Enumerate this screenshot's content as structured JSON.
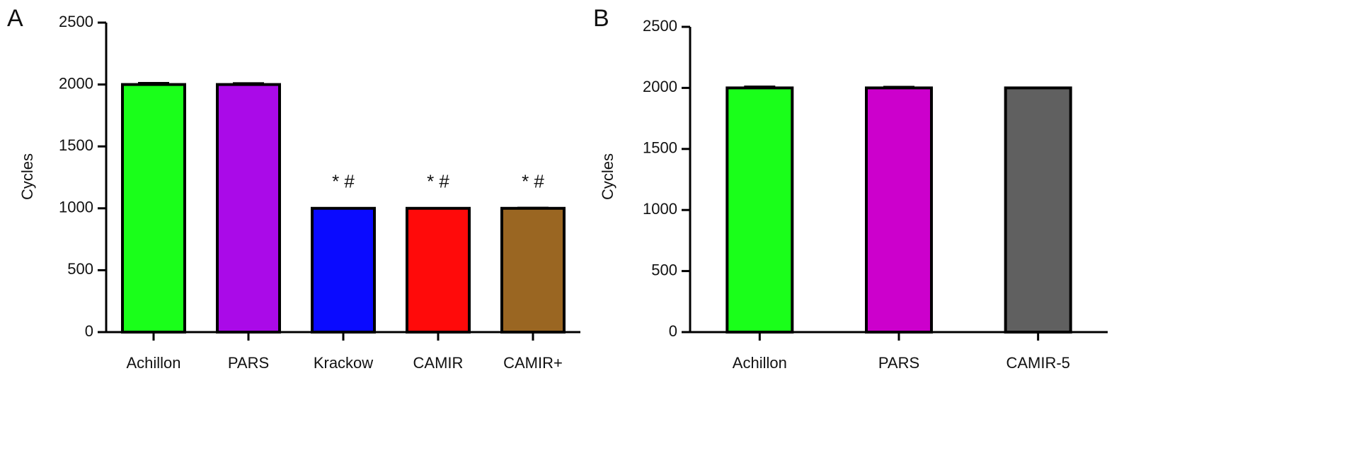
{
  "chart_data": [
    {
      "type": "bar",
      "panel": "A",
      "ylabel": "Cycles",
      "categories": [
        "Achillon",
        "PARS",
        "Krackow",
        "CAMIR",
        "CAMIR+"
      ],
      "values": [
        2000,
        2000,
        1000,
        1000,
        1000
      ],
      "errors": [
        12,
        10,
        0,
        0,
        4
      ],
      "colors": [
        "#1aff1a",
        "#aa0ae8",
        "#0a0aff",
        "#ff0a0a",
        "#9a6622"
      ],
      "annotations": [
        null,
        null,
        "* #",
        "* #",
        "* #"
      ],
      "ylim": [
        0,
        2500
      ],
      "yticks": [
        0,
        500,
        1000,
        1500,
        2000,
        2500
      ]
    },
    {
      "type": "bar",
      "panel": "B",
      "ylabel": "Cycles",
      "categories": [
        "Achillon",
        "PARS",
        "CAMIR-5"
      ],
      "values": [
        2000,
        2000,
        2000
      ],
      "errors": [
        10,
        8,
        0
      ],
      "colors": [
        "#1aff1a",
        "#cc00cc",
        "#606060"
      ],
      "ylim": [
        0,
        2500
      ],
      "yticks": [
        0,
        500,
        1000,
        1500,
        2000,
        2500
      ]
    }
  ]
}
